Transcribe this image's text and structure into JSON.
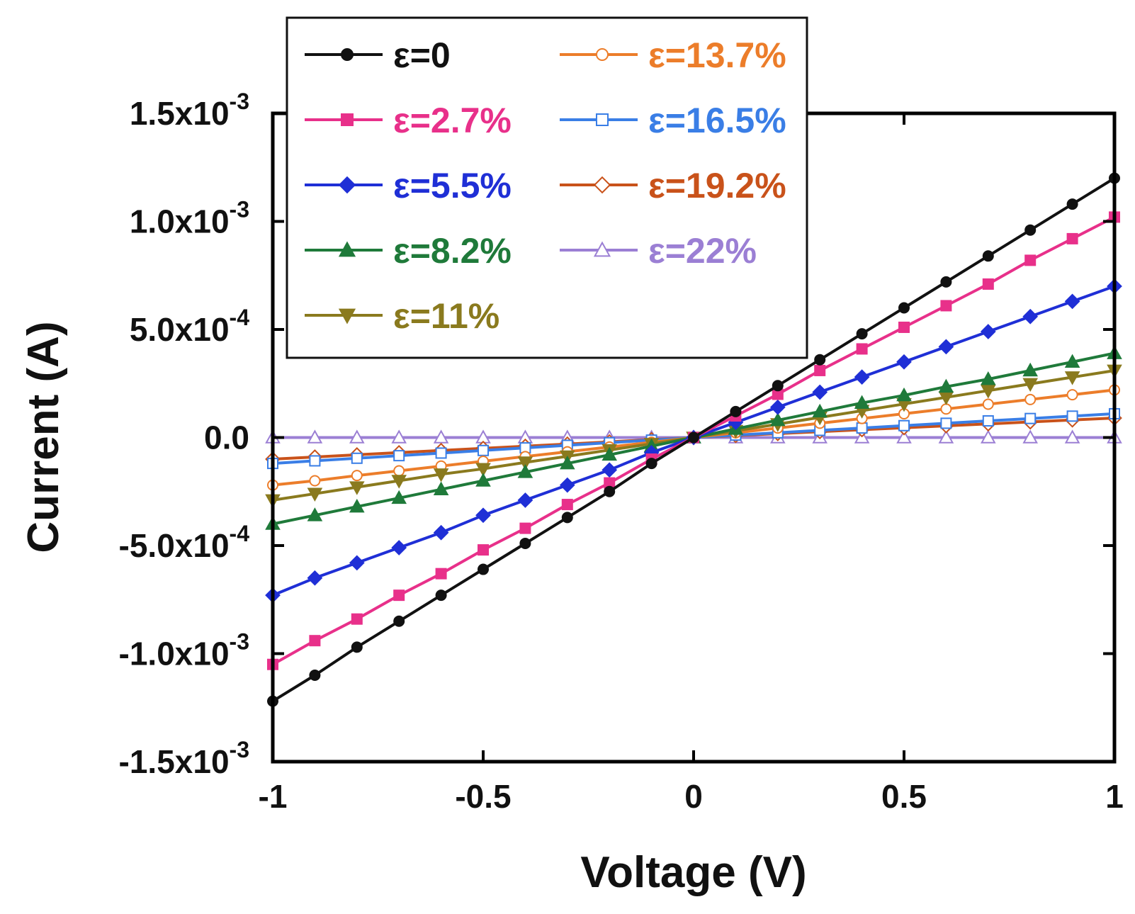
{
  "chart_data": {
    "type": "line",
    "xlabel": "Voltage (V)",
    "ylabel": "Current (A)",
    "xlim": [
      -1,
      1
    ],
    "ylim": [
      -0.0015,
      0.0015
    ],
    "grid": false,
    "legend_position": "top-left",
    "xticks": [
      {
        "value": -1,
        "label": "-1"
      },
      {
        "value": -0.5,
        "label": "-0.5"
      },
      {
        "value": 0,
        "label": "0"
      },
      {
        "value": 0.5,
        "label": "0.5"
      },
      {
        "value": 1,
        "label": "1"
      }
    ],
    "yticks": [
      {
        "value": -0.0015,
        "mantissa": "-1.5x10",
        "exponent": "-3"
      },
      {
        "value": -0.001,
        "mantissa": "-1.0x10",
        "exponent": "-3"
      },
      {
        "value": -0.0005,
        "mantissa": "-5.0x10",
        "exponent": "-4"
      },
      {
        "value": 0,
        "mantissa": "0.0",
        "exponent": ""
      },
      {
        "value": 0.0005,
        "mantissa": "5.0x10",
        "exponent": "-4"
      },
      {
        "value": 0.001,
        "mantissa": "1.0x10",
        "exponent": "-3"
      },
      {
        "value": 0.0015,
        "mantissa": "1.5x10",
        "exponent": "-3"
      }
    ],
    "x": [
      -1,
      -0.9,
      -0.8,
      -0.7,
      -0.6,
      -0.5,
      -0.4,
      -0.3,
      -0.2,
      -0.1,
      0,
      0.1,
      0.2,
      0.3,
      0.4,
      0.5,
      0.6,
      0.7,
      0.8,
      0.9,
      1
    ],
    "series": [
      {
        "name": "ε=0",
        "color": "#111111",
        "marker": "circle",
        "filled": true,
        "slope": 0.0012,
        "values": [
          -0.00122,
          -0.0011,
          -0.00097,
          -0.00085,
          -0.00073,
          -0.00061,
          -0.00049,
          -0.00037,
          -0.00025,
          -0.00012,
          0,
          0.00012,
          0.00024,
          0.00036,
          0.00048,
          0.0006,
          0.00072,
          0.00084,
          0.00096,
          0.00108,
          0.0012
        ]
      },
      {
        "name": "ε=2.7%",
        "color": "#e8308a",
        "marker": "square",
        "filled": true,
        "slope": 0.00102,
        "values": [
          -0.00105,
          -0.00094,
          -0.00084,
          -0.00073,
          -0.00063,
          -0.00052,
          -0.00042,
          -0.00031,
          -0.00021,
          -0.0001,
          0,
          0.0001,
          0.0002,
          0.00031,
          0.00041,
          0.00051,
          0.00061,
          0.00071,
          0.00082,
          0.00092,
          0.00102
        ]
      },
      {
        "name": "ε=5.5%",
        "color": "#1f2fd6",
        "marker": "diamond",
        "filled": true,
        "slope": 0.0007,
        "values": [
          -0.00073,
          -0.00065,
          -0.00058,
          -0.00051,
          -0.00044,
          -0.00036,
          -0.00029,
          -0.00022,
          -0.00015,
          -7e-05,
          0,
          7e-05,
          0.00014,
          0.00021,
          0.00028,
          0.00035,
          0.00042,
          0.00049,
          0.00056,
          0.00063,
          0.0007
        ]
      },
      {
        "name": "ε=8.2%",
        "color": "#1f7a3a",
        "marker": "triangle-up",
        "filled": true,
        "slope": 0.00039,
        "values": [
          -0.0004,
          -0.00036,
          -0.00032,
          -0.00028,
          -0.00024,
          -0.0002,
          -0.00016,
          -0.00012,
          -8e-05,
          -4e-05,
          0,
          4e-05,
          8e-05,
          0.00012,
          0.00016,
          0.000195,
          0.000235,
          0.00027,
          0.00031,
          0.00035,
          0.00039
        ]
      },
      {
        "name": "ε=11%",
        "color": "#8a7a1e",
        "marker": "triangle-down",
        "filled": true,
        "slope": 0.00031,
        "values": [
          -0.00029,
          -0.00026,
          -0.00023,
          -0.0002,
          -0.00017,
          -0.000145,
          -0.000115,
          -8.7e-05,
          -5.8e-05,
          -2.9e-05,
          0,
          3.1e-05,
          6.2e-05,
          9.3e-05,
          0.000124,
          0.000155,
          0.000186,
          0.000217,
          0.000248,
          0.000279,
          0.00031
        ]
      },
      {
        "name": "ε=13.7%",
        "color": "#ec7d2a",
        "marker": "circle",
        "filled": false,
        "slope": 0.00022,
        "values": [
          -0.00022,
          -0.0002,
          -0.000176,
          -0.000154,
          -0.000132,
          -0.00011,
          -8.8e-05,
          -6.6e-05,
          -4.4e-05,
          -2.2e-05,
          0,
          2.2e-05,
          4.4e-05,
          6.6e-05,
          8.8e-05,
          0.00011,
          0.000132,
          0.000154,
          0.000176,
          0.000198,
          0.00022
        ]
      },
      {
        "name": "ε=16.5%",
        "color": "#3a7ee6",
        "marker": "square",
        "filled": false,
        "slope": 0.00011,
        "values": [
          -0.00012,
          -0.000108,
          -9.6e-05,
          -8.4e-05,
          -7.2e-05,
          -6e-05,
          -4.8e-05,
          -3.6e-05,
          -2.4e-05,
          -1.2e-05,
          0,
          1.1e-05,
          2.2e-05,
          3.3e-05,
          4.4e-05,
          5.5e-05,
          6.6e-05,
          7.7e-05,
          8.8e-05,
          9.9e-05,
          0.00011
        ]
      },
      {
        "name": "ε=19.2%",
        "color": "#c9521a",
        "marker": "diamond",
        "filled": false,
        "slope": 9e-05,
        "values": [
          -0.0001,
          -9e-05,
          -8e-05,
          -7e-05,
          -6e-05,
          -5e-05,
          -4e-05,
          -3e-05,
          -2e-05,
          -1e-05,
          0,
          9e-06,
          1.8e-05,
          2.7e-05,
          3.6e-05,
          4.5e-05,
          5.4e-05,
          6.3e-05,
          7.2e-05,
          8.1e-05,
          9e-05
        ]
      },
      {
        "name": "ε=22%",
        "color": "#9b7fd4",
        "marker": "triangle-up",
        "filled": false,
        "slope": 0,
        "values": [
          0,
          0,
          0,
          0,
          0,
          0,
          0,
          0,
          0,
          0,
          0,
          0,
          0,
          0,
          0,
          0,
          0,
          0,
          0,
          0,
          0
        ]
      }
    ]
  }
}
